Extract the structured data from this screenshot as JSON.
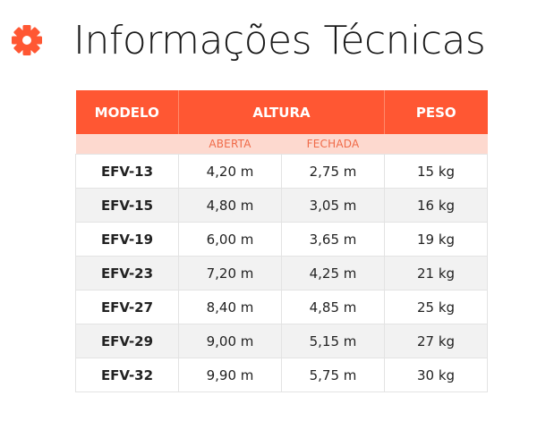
{
  "page": {
    "title": "Informações Técnicas",
    "icon": "gear-icon",
    "accent_color": "#ff5733"
  },
  "table": {
    "headers": {
      "model": "MODELO",
      "height": "ALTURA",
      "weight": "PESO"
    },
    "subheaders": {
      "open": "ABERTA",
      "closed": "FECHADA"
    },
    "rows": [
      {
        "model": "EFV-13",
        "open": "4,20 m",
        "closed": "2,75 m",
        "weight": "15 kg"
      },
      {
        "model": "EFV-15",
        "open": "4,80 m",
        "closed": "3,05 m",
        "weight": "16 kg"
      },
      {
        "model": "EFV-19",
        "open": "6,00 m",
        "closed": "3,65 m",
        "weight": "19 kg"
      },
      {
        "model": "EFV-23",
        "open": "7,20 m",
        "closed": "4,25 m",
        "weight": "21 kg"
      },
      {
        "model": "EFV-27",
        "open": "8,40 m",
        "closed": "4,85 m",
        "weight": "25 kg"
      },
      {
        "model": "EFV-29",
        "open": "9,00 m",
        "closed": "5,15 m",
        "weight": "27 kg"
      },
      {
        "model": "EFV-32",
        "open": "9,90 m",
        "closed": "5,75 m",
        "weight": "30 kg"
      }
    ]
  }
}
